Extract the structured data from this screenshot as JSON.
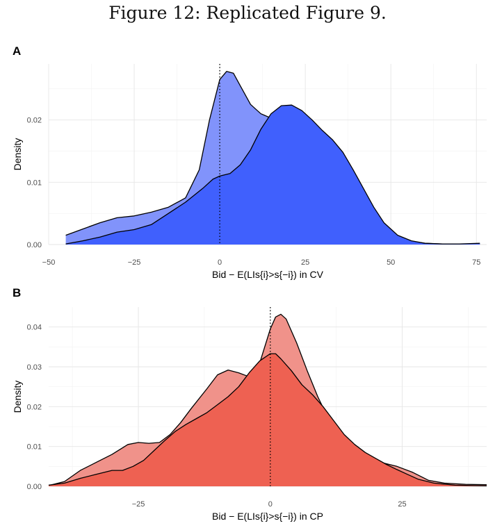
{
  "title": "Figure 12: Replicated Figure 9.",
  "chart_data": [
    {
      "panel": "A",
      "type": "area",
      "xlabel": "Bid − E(LIs{i}>s{−i}) in CV",
      "ylabel": "Density",
      "xlim": [
        -50,
        78
      ],
      "ylim": [
        0,
        0.029
      ],
      "xticks": [
        -50,
        -25,
        0,
        25,
        50,
        75
      ],
      "xtick_labels": [
        "−50",
        "−25",
        "0",
        "25",
        "50",
        "75"
      ],
      "yticks": [
        0.0,
        0.01,
        0.02
      ],
      "ytick_labels": [
        "0.00",
        "0.01",
        "0.02"
      ],
      "vline": 0,
      "grid": true,
      "series": [
        {
          "fill": "#8193fb",
          "points": [
            [
              -45,
              0.0015
            ],
            [
              -40,
              0.0025
            ],
            [
              -35,
              0.0035
            ],
            [
              -30,
              0.0043
            ],
            [
              -25,
              0.0046
            ],
            [
              -20,
              0.0052
            ],
            [
              -15,
              0.006
            ],
            [
              -10,
              0.0075
            ],
            [
              -6,
              0.012
            ],
            [
              -3,
              0.02
            ],
            [
              0,
              0.0265
            ],
            [
              2,
              0.0278
            ],
            [
              4,
              0.0275
            ],
            [
              6,
              0.0255
            ],
            [
              9,
              0.0225
            ],
            [
              12,
              0.021
            ],
            [
              15,
              0.0203
            ],
            [
              20,
              0.0198
            ],
            [
              23,
              0.019
            ],
            [
              25,
              0.0178
            ],
            [
              28,
              0.016
            ],
            [
              30,
              0.014
            ],
            [
              33,
              0.011
            ],
            [
              37,
              0.0075
            ],
            [
              40,
              0.0055
            ],
            [
              45,
              0.003
            ],
            [
              50,
              0.0015
            ],
            [
              55,
              0.0006
            ],
            [
              60,
              0.0002
            ],
            [
              65,
              0.0001
            ],
            [
              70,
              0.0001
            ],
            [
              76,
              0.0001
            ]
          ]
        },
        {
          "fill": "#4060fd",
          "points": [
            [
              -45,
              0.0001
            ],
            [
              -40,
              0.0006
            ],
            [
              -35,
              0.0012
            ],
            [
              -30,
              0.002
            ],
            [
              -25,
              0.0024
            ],
            [
              -20,
              0.0032
            ],
            [
              -15,
              0.005
            ],
            [
              -10,
              0.0068
            ],
            [
              -5,
              0.009
            ],
            [
              -2,
              0.0105
            ],
            [
              0,
              0.011
            ],
            [
              3,
              0.0114
            ],
            [
              6,
              0.0128
            ],
            [
              9,
              0.0152
            ],
            [
              12,
              0.0185
            ],
            [
              15,
              0.021
            ],
            [
              18,
              0.0223
            ],
            [
              21,
              0.0224
            ],
            [
              24,
              0.0215
            ],
            [
              27,
              0.02
            ],
            [
              30,
              0.0183
            ],
            [
              33,
              0.0168
            ],
            [
              36,
              0.0148
            ],
            [
              39,
              0.012
            ],
            [
              42,
              0.009
            ],
            [
              45,
              0.006
            ],
            [
              48,
              0.0035
            ],
            [
              52,
              0.0015
            ],
            [
              56,
              0.0006
            ],
            [
              60,
              0.0002
            ],
            [
              65,
              0.0001
            ],
            [
              70,
              0.0001
            ],
            [
              76,
              0.0002
            ]
          ]
        }
      ]
    },
    {
      "panel": "B",
      "type": "area",
      "xlabel": "Bid − E(LIs{i}>s{−i}) in CP",
      "ylabel": "Density",
      "xlim": [
        -42,
        41
      ],
      "ylim": [
        0,
        0.045
      ],
      "xticks": [
        -25,
        0,
        25
      ],
      "xtick_labels": [
        "−25",
        "0",
        "25"
      ],
      "yticks": [
        0.0,
        0.01,
        0.02,
        0.03,
        0.04
      ],
      "ytick_labels": [
        "0.00",
        "0.01",
        "0.02",
        "0.03",
        "0.04"
      ],
      "vline": 0,
      "grid": true,
      "series": [
        {
          "fill": "#f0928a",
          "points": [
            [
              -42,
              0.0002
            ],
            [
              -39,
              0.0012
            ],
            [
              -36,
              0.004
            ],
            [
              -33,
              0.006
            ],
            [
              -30,
              0.008
            ],
            [
              -27,
              0.0105
            ],
            [
              -25,
              0.011
            ],
            [
              -23,
              0.0108
            ],
            [
              -21,
              0.011
            ],
            [
              -19,
              0.013
            ],
            [
              -17,
              0.016
            ],
            [
              -15,
              0.0195
            ],
            [
              -12,
              0.0245
            ],
            [
              -10,
              0.028
            ],
            [
              -8,
              0.0292
            ],
            [
              -6,
              0.0285
            ],
            [
              -4,
              0.0275
            ],
            [
              -2,
              0.031
            ],
            [
              0,
              0.0395
            ],
            [
              1,
              0.0425
            ],
            [
              2,
              0.0432
            ],
            [
              3,
              0.042
            ],
            [
              5,
              0.036
            ],
            [
              7,
              0.029
            ],
            [
              9,
              0.0225
            ],
            [
              11,
              0.017
            ],
            [
              13,
              0.013
            ],
            [
              15,
              0.01
            ],
            [
              18,
              0.0075
            ],
            [
              21,
              0.006
            ],
            [
              24,
              0.005
            ],
            [
              27,
              0.0035
            ],
            [
              30,
              0.0015
            ],
            [
              33,
              0.0008
            ],
            [
              37,
              0.0005
            ],
            [
              41,
              0.0004
            ]
          ]
        },
        {
          "fill": "#ee6152",
          "points": [
            [
              -42,
              0.0003
            ],
            [
              -39,
              0.0008
            ],
            [
              -36,
              0.002
            ],
            [
              -33,
              0.003
            ],
            [
              -30,
              0.004
            ],
            [
              -28,
              0.004
            ],
            [
              -26,
              0.005
            ],
            [
              -24,
              0.0065
            ],
            [
              -22,
              0.009
            ],
            [
              -20,
              0.0115
            ],
            [
              -18,
              0.0138
            ],
            [
              -16,
              0.0155
            ],
            [
              -14,
              0.017
            ],
            [
              -12,
              0.0185
            ],
            [
              -10,
              0.0205
            ],
            [
              -8,
              0.0225
            ],
            [
              -6,
              0.025
            ],
            [
              -4,
              0.0285
            ],
            [
              -2,
              0.0315
            ],
            [
              0,
              0.0333
            ],
            [
              1,
              0.0333
            ],
            [
              2,
              0.032
            ],
            [
              4,
              0.029
            ],
            [
              6,
              0.0255
            ],
            [
              8,
              0.023
            ],
            [
              10,
              0.02
            ],
            [
              12,
              0.0165
            ],
            [
              14,
              0.013
            ],
            [
              16,
              0.0105
            ],
            [
              18,
              0.0085
            ],
            [
              20,
              0.007
            ],
            [
              22,
              0.0055
            ],
            [
              24,
              0.0042
            ],
            [
              26,
              0.003
            ],
            [
              28,
              0.0018
            ],
            [
              31,
              0.0008
            ],
            [
              35,
              0.0003
            ],
            [
              41,
              0.0001
            ]
          ]
        }
      ]
    }
  ]
}
